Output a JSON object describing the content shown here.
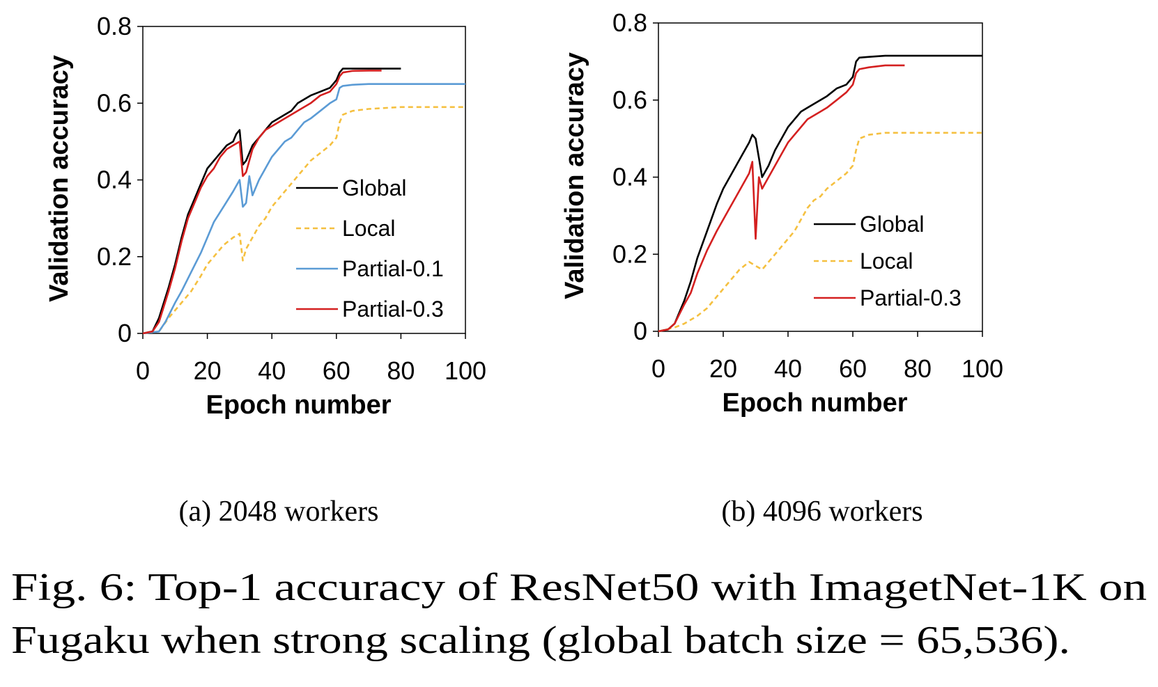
{
  "figure": {
    "caption_line1": "Fig. 6: Top-1 accuracy of ResNet50 with ImagetNet-1K on",
    "caption_line2": "Fugaku when strong scaling (global batch size = 65,536)."
  },
  "colors": {
    "Global": "#000000",
    "Local": "#f5c040",
    "Partial-0.1": "#5b9bd5",
    "Partial-0.3": "#d42020"
  },
  "chart_data": [
    {
      "type": "line",
      "subcaption": "(a) 2048 workers",
      "xlabel": "Epoch number",
      "ylabel": "Validation accuracy",
      "xlim": [
        0,
        100
      ],
      "ylim": [
        0,
        0.8
      ],
      "xticks": [
        "0",
        "20",
        "40",
        "60",
        "80",
        "100"
      ],
      "yticks": [
        "0",
        "0.2",
        "0.4",
        "0.6",
        "0.8"
      ],
      "legend_position": "center-right",
      "series": [
        {
          "name": "Global",
          "style": "solid",
          "x": [
            0,
            3,
            5,
            8,
            10,
            12,
            14,
            16,
            18,
            20,
            22,
            24,
            26,
            28,
            29,
            30,
            31,
            32,
            34,
            36,
            38,
            40,
            42,
            44,
            46,
            48,
            50,
            52,
            55,
            58,
            60,
            61,
            62,
            65,
            70,
            75,
            80
          ],
          "y": [
            0,
            0.005,
            0.04,
            0.12,
            0.18,
            0.25,
            0.31,
            0.35,
            0.39,
            0.43,
            0.45,
            0.47,
            0.49,
            0.5,
            0.52,
            0.53,
            0.44,
            0.45,
            0.49,
            0.51,
            0.53,
            0.55,
            0.56,
            0.57,
            0.58,
            0.6,
            0.61,
            0.62,
            0.63,
            0.64,
            0.66,
            0.68,
            0.69,
            0.69,
            0.69,
            0.69,
            0.69
          ]
        },
        {
          "name": "Local",
          "style": "dashed",
          "x": [
            0,
            5,
            8,
            10,
            12,
            15,
            18,
            20,
            22,
            25,
            28,
            30,
            31,
            32,
            34,
            36,
            38,
            40,
            42,
            44,
            46,
            48,
            50,
            52,
            55,
            58,
            60,
            61,
            62,
            65,
            70,
            80,
            90,
            100
          ],
          "y": [
            0,
            0.005,
            0.04,
            0.06,
            0.08,
            0.11,
            0.15,
            0.18,
            0.2,
            0.23,
            0.25,
            0.26,
            0.19,
            0.22,
            0.25,
            0.28,
            0.3,
            0.33,
            0.35,
            0.37,
            0.39,
            0.41,
            0.43,
            0.45,
            0.47,
            0.49,
            0.51,
            0.55,
            0.57,
            0.58,
            0.585,
            0.59,
            0.59,
            0.59
          ]
        },
        {
          "name": "Partial-0.1",
          "style": "solid",
          "x": [
            0,
            5,
            7,
            10,
            12,
            15,
            18,
            20,
            22,
            25,
            28,
            30,
            31,
            32,
            33,
            34,
            36,
            38,
            40,
            42,
            44,
            46,
            48,
            50,
            52,
            55,
            58,
            60,
            61,
            62,
            65,
            70,
            80,
            90,
            100
          ],
          "y": [
            0,
            0.005,
            0.03,
            0.08,
            0.11,
            0.16,
            0.21,
            0.25,
            0.29,
            0.33,
            0.37,
            0.4,
            0.33,
            0.34,
            0.41,
            0.36,
            0.4,
            0.43,
            0.46,
            0.48,
            0.5,
            0.51,
            0.53,
            0.55,
            0.56,
            0.58,
            0.6,
            0.61,
            0.64,
            0.645,
            0.648,
            0.65,
            0.65,
            0.65,
            0.65
          ]
        },
        {
          "name": "Partial-0.3",
          "style": "solid",
          "x": [
            0,
            3,
            5,
            8,
            10,
            12,
            14,
            16,
            18,
            20,
            22,
            24,
            26,
            28,
            30,
            31,
            32,
            34,
            36,
            38,
            40,
            42,
            44,
            46,
            48,
            50,
            52,
            55,
            58,
            60,
            61,
            62,
            65,
            70,
            74
          ],
          "y": [
            0,
            0.005,
            0.03,
            0.11,
            0.17,
            0.24,
            0.3,
            0.34,
            0.38,
            0.41,
            0.43,
            0.46,
            0.48,
            0.49,
            0.5,
            0.41,
            0.42,
            0.48,
            0.51,
            0.53,
            0.54,
            0.55,
            0.56,
            0.57,
            0.58,
            0.59,
            0.6,
            0.62,
            0.63,
            0.65,
            0.67,
            0.68,
            0.684,
            0.685,
            0.685
          ]
        }
      ]
    },
    {
      "type": "line",
      "subcaption": "(b) 4096 workers",
      "xlabel": "Epoch number",
      "ylabel": "Validation accuracy",
      "xlim": [
        0,
        100
      ],
      "ylim": [
        0,
        0.8
      ],
      "xticks": [
        "0",
        "20",
        "40",
        "60",
        "80",
        "100"
      ],
      "yticks": [
        "0",
        "0.2",
        "0.4",
        "0.6",
        "0.8"
      ],
      "legend_position": "center-right",
      "series": [
        {
          "name": "Global",
          "style": "solid",
          "x": [
            0,
            3,
            5,
            8,
            10,
            12,
            15,
            18,
            20,
            22,
            24,
            26,
            28,
            29,
            30,
            31,
            32,
            34,
            36,
            38,
            40,
            42,
            44,
            46,
            48,
            50,
            52,
            55,
            58,
            60,
            61,
            62,
            65,
            70,
            80,
            90,
            100
          ],
          "y": [
            0,
            0.005,
            0.02,
            0.08,
            0.13,
            0.19,
            0.26,
            0.33,
            0.37,
            0.4,
            0.43,
            0.46,
            0.49,
            0.51,
            0.5,
            0.45,
            0.4,
            0.43,
            0.47,
            0.5,
            0.53,
            0.55,
            0.57,
            0.58,
            0.59,
            0.6,
            0.61,
            0.63,
            0.64,
            0.66,
            0.7,
            0.71,
            0.712,
            0.715,
            0.715,
            0.715,
            0.715
          ]
        },
        {
          "name": "Local",
          "style": "dashed",
          "x": [
            0,
            5,
            8,
            10,
            12,
            15,
            18,
            20,
            22,
            25,
            28,
            30,
            32,
            34,
            36,
            38,
            40,
            42,
            44,
            46,
            48,
            50,
            52,
            55,
            58,
            60,
            61,
            62,
            65,
            70,
            80,
            90,
            100
          ],
          "y": [
            0,
            0.01,
            0.02,
            0.03,
            0.04,
            0.06,
            0.09,
            0.11,
            0.13,
            0.16,
            0.18,
            0.17,
            0.16,
            0.18,
            0.2,
            0.22,
            0.24,
            0.26,
            0.29,
            0.32,
            0.34,
            0.35,
            0.37,
            0.39,
            0.41,
            0.43,
            0.47,
            0.5,
            0.51,
            0.515,
            0.515,
            0.515,
            0.515
          ]
        },
        {
          "name": "Partial-0.3",
          "style": "solid",
          "x": [
            0,
            3,
            5,
            8,
            10,
            12,
            15,
            18,
            20,
            22,
            24,
            26,
            28,
            29,
            30,
            31,
            32,
            34,
            36,
            38,
            40,
            42,
            44,
            46,
            48,
            50,
            52,
            55,
            58,
            60,
            61,
            62,
            65,
            70,
            76
          ],
          "y": [
            0,
            0.005,
            0.02,
            0.07,
            0.1,
            0.15,
            0.21,
            0.26,
            0.29,
            0.32,
            0.35,
            0.38,
            0.41,
            0.44,
            0.24,
            0.4,
            0.37,
            0.4,
            0.43,
            0.46,
            0.49,
            0.51,
            0.53,
            0.55,
            0.56,
            0.57,
            0.58,
            0.6,
            0.62,
            0.64,
            0.67,
            0.68,
            0.685,
            0.69,
            0.69
          ]
        }
      ]
    }
  ]
}
